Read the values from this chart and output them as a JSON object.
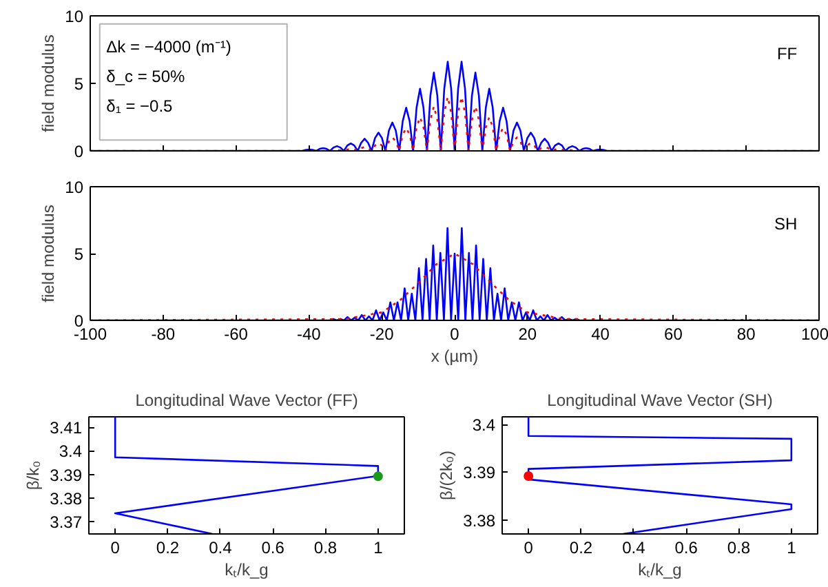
{
  "chart_data": [
    {
      "type": "line",
      "ylabel": "field modulus",
      "xlim": [
        -100,
        100
      ],
      "ylim": [
        0,
        10
      ],
      "xticks": [
        -100,
        -80,
        -60,
        -40,
        -20,
        0,
        20,
        40,
        60,
        80,
        100
      ],
      "yticks": [
        0,
        5,
        10
      ],
      "tick_labels": "y",
      "annotations": [
        "Δk = −4000 (m⁻¹)",
        "δ_c = 50%",
        "δ₁ = −0.5",
        "FF"
      ],
      "series": [
        {
          "color": "#0000ff",
          "line_style": "solid",
          "x": [
            -100,
            -41.8,
            -40.85,
            -39.9,
            -38.95,
            -38,
            -37.05,
            -36.1,
            -35.15,
            -34.2,
            -33.25,
            -32.3,
            -31.35,
            -30.4,
            -29.45,
            -28.5,
            -27.55,
            -26.6,
            -25.65,
            -24.7,
            -23.75,
            -22.8,
            -21.85,
            -20.9,
            -19.95,
            -19,
            -18.05,
            -17.1,
            -16.15,
            -15.2,
            -14.25,
            -13.3,
            -12.35,
            -11.4,
            -10.45,
            -9.5,
            -8.55,
            -7.6,
            -6.65,
            -5.7,
            -4.75,
            -3.8,
            -2.85,
            -1.9,
            -0.95,
            0,
            0.95,
            1.9,
            2.85,
            3.8,
            4.75,
            5.7,
            6.65,
            7.6,
            8.55,
            9.5,
            10.45,
            11.4,
            12.35,
            13.3,
            14.25,
            15.2,
            16.15,
            17.1,
            18.05,
            19,
            19.95,
            20.9,
            21.85,
            22.8,
            23.75,
            24.7,
            25.65,
            26.6,
            27.55,
            28.5,
            29.45,
            30.4,
            31.35,
            32.3,
            33.25,
            34.2,
            35.15,
            36.1,
            37.05,
            38,
            38.95,
            39.9,
            40.85,
            41.8,
            100
          ],
          "values": [
            0,
            0,
            0.07,
            0.1,
            0.07,
            0,
            0.15,
            0.2,
            0.15,
            0,
            0.25,
            0.35,
            0.25,
            0,
            0.4,
            0.55,
            0.4,
            0,
            0.6,
            0.9,
            0.6,
            0,
            0.95,
            1.35,
            0.95,
            0,
            1.5,
            2.1,
            1.5,
            0,
            2.2,
            3.2,
            2.2,
            0,
            3.2,
            4.6,
            3.2,
            0,
            4.1,
            5.8,
            4.1,
            0,
            4.6,
            6.6,
            4.6,
            0,
            4.6,
            6.6,
            4.6,
            0,
            4.1,
            5.8,
            4.1,
            0,
            3.2,
            4.6,
            3.2,
            0,
            2.2,
            3.2,
            2.2,
            0,
            1.5,
            2.1,
            1.5,
            0,
            0.95,
            1.35,
            0.95,
            0,
            0.6,
            0.9,
            0.6,
            0,
            0.4,
            0.55,
            0.4,
            0,
            0.25,
            0.35,
            0.25,
            0,
            0.15,
            0.2,
            0.15,
            0,
            0.07,
            0.1,
            0.07,
            0,
            0
          ]
        },
        {
          "color": "#ff0000",
          "line_style": "dotted",
          "x": [
            -100,
            -34.2,
            -33.25,
            -32.3,
            -31.35,
            -30.4,
            -29.45,
            -28.5,
            -27.55,
            -26.6,
            -25.65,
            -24.7,
            -23.75,
            -22.8,
            -21.85,
            -20.9,
            -19.95,
            -19,
            -18.05,
            -17.1,
            -16.15,
            -15.2,
            -14.25,
            -13.3,
            -12.35,
            -11.4,
            -10.45,
            -9.5,
            -8.55,
            -7.6,
            -6.65,
            -5.7,
            -4.75,
            -3.8,
            -2.85,
            -1.9,
            -0.95,
            0,
            0.95,
            1.9,
            2.85,
            3.8,
            4.75,
            5.7,
            6.65,
            7.6,
            8.55,
            9.5,
            10.45,
            11.4,
            12.35,
            13.3,
            14.25,
            15.2,
            16.15,
            17.1,
            18.05,
            19,
            19.95,
            20.9,
            21.85,
            22.8,
            23.75,
            24.7,
            25.65,
            26.6,
            27.55,
            28.5,
            29.45,
            30.4,
            31.35,
            32.3,
            33.25,
            34.2,
            100
          ],
          "values": [
            0,
            0,
            0.04,
            0.05,
            0.04,
            0,
            0.1,
            0.15,
            0.1,
            0,
            0.2,
            0.3,
            0.2,
            0,
            0.4,
            0.6,
            0.4,
            0,
            0.7,
            1,
            0.7,
            0,
            1.2,
            1.7,
            1.2,
            0,
            1.75,
            2.5,
            1.75,
            0,
            2.3,
            3.3,
            2.3,
            0,
            2.8,
            4,
            2.8,
            0,
            2.8,
            4,
            2.8,
            0,
            2.3,
            3.3,
            2.3,
            0,
            1.75,
            2.5,
            1.75,
            0,
            1.2,
            1.7,
            1.2,
            0,
            0.7,
            1,
            0.7,
            0,
            0.4,
            0.6,
            0.4,
            0,
            0.2,
            0.3,
            0.2,
            0,
            0.1,
            0.15,
            0.1,
            0,
            0.04,
            0.05,
            0.04,
            0,
            0
          ]
        }
      ]
    },
    {
      "type": "line",
      "ylabel": "field modulus",
      "xlabel": "x (µm)",
      "xlim": [
        -100,
        100
      ],
      "ylim": [
        0,
        10
      ],
      "xticks": [
        -100,
        -80,
        -60,
        -40,
        -20,
        0,
        20,
        40,
        60,
        80,
        100
      ],
      "yticks": [
        0,
        5,
        10
      ],
      "annotations": [
        "SH"
      ],
      "series": [
        {
          "color": "#0000ff",
          "line_style": "solid",
          "x": [
            -100,
            -34.3,
            -33.32,
            -32.34,
            -31.36,
            -30.38,
            -29.4,
            -28.42,
            -27.44,
            -26.46,
            -25.48,
            -24.5,
            -23.52,
            -22.54,
            -21.56,
            -20.58,
            -19.6,
            -18.62,
            -17.64,
            -16.66,
            -15.68,
            -14.7,
            -13.72,
            -12.74,
            -11.76,
            -10.78,
            -9.8,
            -8.82,
            -7.84,
            -6.86,
            -5.88,
            -4.9,
            -3.92,
            -2.94,
            -1.96,
            -0.98,
            0,
            0.98,
            1.96,
            2.94,
            3.92,
            4.9,
            5.88,
            6.86,
            7.84,
            8.82,
            9.8,
            10.78,
            11.76,
            12.74,
            13.72,
            14.7,
            15.68,
            16.66,
            17.64,
            18.62,
            19.6,
            20.58,
            21.56,
            22.54,
            23.52,
            24.5,
            25.48,
            26.46,
            27.44,
            28.42,
            29.4,
            30.38,
            31.36,
            32.34,
            33.32,
            34.3,
            100
          ],
          "values": [
            0,
            0,
            0.1,
            0,
            0.1,
            0,
            0.25,
            0,
            0.2,
            0,
            0.4,
            0,
            0.3,
            0,
            0.75,
            0,
            0.6,
            0,
            1.35,
            0,
            1.35,
            0,
            2.4,
            0,
            2,
            0,
            3.9,
            0,
            4.6,
            0,
            5.6,
            0,
            5.05,
            0,
            6.9,
            0,
            5,
            0,
            6.9,
            0,
            5.05,
            0,
            5.6,
            0,
            4.6,
            0,
            3.9,
            0,
            2,
            0,
            2.4,
            0,
            1.35,
            0,
            1.35,
            0,
            0.6,
            0,
            0.75,
            0,
            0.3,
            0,
            0.4,
            0,
            0.2,
            0,
            0.25,
            0,
            0.1,
            0,
            0.1,
            0,
            0
          ]
        },
        {
          "color": "#ff0000",
          "line_style": "dotted",
          "x": [
            -100,
            -30,
            -20,
            -15,
            -10,
            -5,
            0,
            5,
            10,
            15,
            20,
            30,
            100
          ],
          "values": [
            0,
            0.1,
            0.6,
            1.5,
            2.8,
            4.2,
            5,
            4.2,
            2.8,
            1.5,
            0.6,
            0.1,
            0
          ]
        }
      ]
    },
    {
      "type": "line",
      "title": "Longitudinal Wave Vector (FF)",
      "xlabel": "kₜ/k_g",
      "ylabel": "β/k₀",
      "xlim": [
        -0.1,
        1.1
      ],
      "ylim": [
        3.3647,
        3.4145
      ],
      "xticks": [
        0,
        0.2,
        0.4,
        0.6,
        0.8,
        1
      ],
      "yticks": [
        3.37,
        3.38,
        3.39,
        3.4,
        3.41
      ],
      "series": [
        {
          "color": "#0000ff",
          "line_style": "solid",
          "x": [
            0,
            0,
            1,
            1,
            0,
            0.37
          ],
          "values": [
            3.4145,
            3.3973,
            3.3936,
            3.3894,
            3.3735,
            3.3647
          ]
        },
        {
          "type": "scatter",
          "marker": "circle",
          "color": "#1a9a1a",
          "x": [
            1
          ],
          "values": [
            3.3892
          ]
        }
      ]
    },
    {
      "type": "line",
      "title": "Longitudinal Wave Vector (SH)",
      "xlabel": "kₜ/k_g",
      "ylabel": "β/(2k₀)",
      "xlim": [
        -0.1,
        1.1
      ],
      "ylim": [
        3.3771,
        3.4016
      ],
      "xticks": [
        0,
        0.2,
        0.4,
        0.6,
        0.8,
        1
      ],
      "yticks": [
        3.38,
        3.39,
        3.4
      ],
      "series": [
        {
          "color": "#0000ff",
          "line_style": "solid",
          "x": [
            0,
            0,
            1,
            1,
            0,
            0,
            1,
            1,
            0.36
          ],
          "values": [
            3.4016,
            3.3976,
            3.397,
            3.3925,
            3.3907,
            3.3885,
            3.3833,
            3.3823,
            3.3771
          ]
        },
        {
          "type": "scatter",
          "marker": "circle",
          "color": "#ff0000",
          "x": [
            0
          ],
          "values": [
            3.3892
          ]
        }
      ]
    }
  ]
}
